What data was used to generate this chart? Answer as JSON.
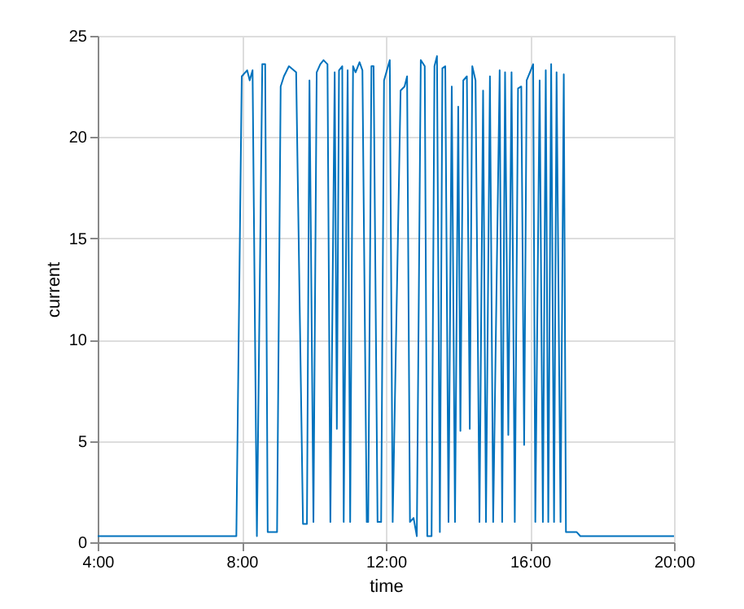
{
  "chart_data": {
    "type": "line",
    "xlabel": "time",
    "ylabel": "current",
    "x": [
      4,
      7.85,
      8.0,
      8.15,
      8.22,
      8.3,
      8.42,
      8.57,
      8.65,
      8.72,
      8.98,
      9.08,
      9.17,
      9.31,
      9.51,
      9.7,
      9.81,
      9.88,
      9.99,
      10.08,
      10.18,
      10.27,
      10.38,
      10.46,
      10.58,
      10.64,
      10.7,
      10.79,
      10.83,
      10.94,
      11.01,
      11.09,
      11.16,
      11.27,
      11.35,
      11.47,
      11.51,
      11.6,
      11.66,
      11.77,
      11.87,
      11.95,
      12.11,
      12.19,
      12.41,
      12.52,
      12.59,
      12.67,
      12.77,
      12.86,
      12.97,
      13.08,
      13.15,
      13.27,
      13.35,
      13.42,
      13.5,
      13.57,
      13.65,
      13.74,
      13.83,
      13.92,
      14.01,
      14.07,
      14.15,
      14.25,
      14.33,
      14.4,
      14.49,
      14.6,
      14.7,
      14.78,
      14.89,
      14.98,
      15.16,
      15.23,
      15.31,
      15.4,
      15.49,
      15.58,
      15.67,
      15.76,
      15.84,
      15.91,
      16.0,
      16.09,
      16.15,
      16.27,
      16.36,
      16.44,
      16.51,
      16.59,
      16.67,
      16.74,
      16.85,
      16.94,
      17.0,
      17.3,
      17.4,
      20
    ],
    "series": [
      {
        "color": "#0072bd",
        "values": [
          0.3,
          0.3,
          23,
          23.3,
          22.8,
          23.3,
          0.3,
          23.6,
          23.6,
          0.5,
          0.5,
          22.5,
          23,
          23.5,
          23.2,
          0.9,
          0.9,
          22.8,
          1,
          23.2,
          23.6,
          23.8,
          23.6,
          1,
          23.2,
          5.6,
          23.3,
          23.5,
          1,
          23.3,
          1,
          23.5,
          23.2,
          23.7,
          23.3,
          1,
          1,
          23.5,
          23.5,
          1,
          1,
          22.8,
          23.8,
          1,
          22.3,
          22.5,
          23,
          1,
          1.2,
          0.3,
          23.8,
          23.5,
          0.3,
          0.3,
          23.5,
          24,
          0.5,
          23.4,
          23.5,
          1,
          22.5,
          1,
          21.5,
          5.5,
          22.8,
          23,
          5.6,
          23.5,
          22.8,
          1,
          22.3,
          1,
          23,
          1,
          23.3,
          1,
          23.2,
          5.3,
          23.2,
          1,
          22.4,
          22.5,
          4.8,
          22.8,
          23.2,
          23.6,
          1,
          22.8,
          1,
          23.3,
          1,
          23.6,
          1,
          23.2,
          1,
          23.1,
          0.5,
          0.5,
          0.3,
          0.3
        ]
      }
    ],
    "xlim": [
      4,
      20
    ],
    "xticks": [
      {
        "value": 4,
        "label": "4:00"
      },
      {
        "value": 8,
        "label": "8:00"
      },
      {
        "value": 12,
        "label": "12:00"
      },
      {
        "value": 16,
        "label": "16:00"
      },
      {
        "value": 20,
        "label": "20:00"
      }
    ],
    "ylim": [
      0,
      25
    ],
    "yticks": [
      0,
      5,
      10,
      15,
      20,
      25
    ],
    "grid": true,
    "line_style": "solid",
    "marker": "none"
  }
}
